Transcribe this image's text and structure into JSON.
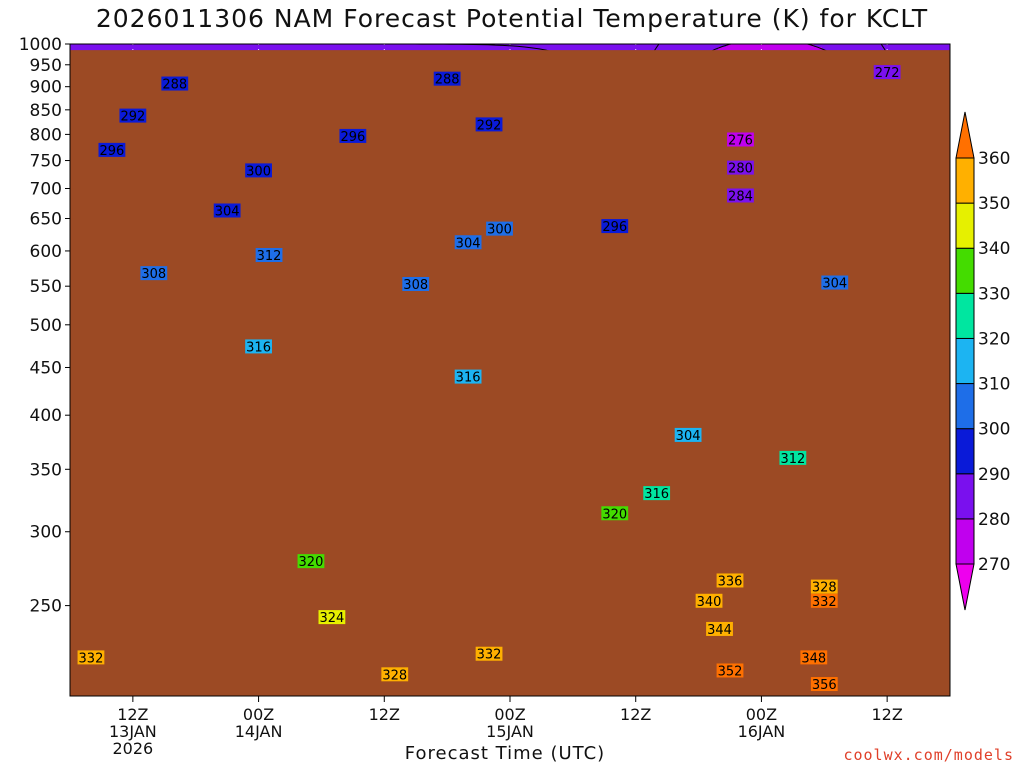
{
  "chart_data": {
    "type": "contour",
    "title": "2026011306 NAM Forecast Potential Temperature (K) for KCLT",
    "xlabel": "Forecast Time (UTC)",
    "ylabel": "",
    "credit": "coolwx.com/models",
    "x_ticks": [
      {
        "t": 6,
        "lines": [
          "12Z",
          "13JAN",
          "2026"
        ]
      },
      {
        "t": 18,
        "lines": [
          "00Z",
          "14JAN"
        ]
      },
      {
        "t": 30,
        "lines": [
          "12Z"
        ]
      },
      {
        "t": 42,
        "lines": [
          "00Z",
          "15JAN"
        ]
      },
      {
        "t": 54,
        "lines": [
          "12Z"
        ]
      },
      {
        "t": 66,
        "lines": [
          "00Z",
          "16JAN"
        ]
      },
      {
        "t": 78,
        "lines": [
          "12Z"
        ]
      }
    ],
    "xlim": [
      0,
      84
    ],
    "y_scale": "log",
    "ylim": [
      1000,
      200
    ],
    "y_ticks": [
      250,
      300,
      350,
      400,
      450,
      500,
      550,
      600,
      650,
      700,
      750,
      800,
      850,
      900,
      950,
      1000
    ],
    "grid": "dotted",
    "colorbar": {
      "ticks": [
        270,
        280,
        290,
        300,
        310,
        320,
        330,
        340,
        350,
        360
      ],
      "bands": [
        {
          "from": 260,
          "to": 270,
          "color": "#ee00ee"
        },
        {
          "from": 270,
          "to": 280,
          "color": "#c000ee"
        },
        {
          "from": 280,
          "to": 290,
          "color": "#7a10ee"
        },
        {
          "from": 290,
          "to": 300,
          "color": "#0a1ad8"
        },
        {
          "from": 300,
          "to": 310,
          "color": "#1e6ee8"
        },
        {
          "from": 310,
          "to": 320,
          "color": "#1cb4f2"
        },
        {
          "from": 320,
          "to": 330,
          "color": "#00e6a0"
        },
        {
          "from": 330,
          "to": 340,
          "color": "#44dc00"
        },
        {
          "from": 340,
          "to": 350,
          "color": "#e6f000"
        },
        {
          "from": 350,
          "to": 360,
          "color": "#ffb000"
        },
        {
          "from": 360,
          "to": 370,
          "color": "#ff7000"
        }
      ]
    },
    "contour_labels": [
      {
        "v": 332,
        "t": 2,
        "p": 220
      },
      {
        "v": 328,
        "t": 31,
        "p": 211
      },
      {
        "v": 332,
        "t": 40,
        "p": 222
      },
      {
        "v": 324,
        "t": 25,
        "p": 243
      },
      {
        "v": 320,
        "t": 23,
        "p": 279
      },
      {
        "v": 352,
        "t": 63,
        "p": 213
      },
      {
        "v": 356,
        "t": 72,
        "p": 206
      },
      {
        "v": 348,
        "t": 71,
        "p": 220
      },
      {
        "v": 344,
        "t": 62,
        "p": 236
      },
      {
        "v": 340,
        "t": 61,
        "p": 253
      },
      {
        "v": 336,
        "t": 63,
        "p": 266
      },
      {
        "v": 332,
        "t": 72,
        "p": 253
      },
      {
        "v": 328,
        "t": 72,
        "p": 262
      },
      {
        "v": 320,
        "t": 52,
        "p": 314
      },
      {
        "v": 316,
        "t": 56,
        "p": 330
      },
      {
        "v": 312,
        "t": 69,
        "p": 360
      },
      {
        "v": 304,
        "t": 59,
        "p": 381
      },
      {
        "v": 316,
        "t": 38,
        "p": 440
      },
      {
        "v": 316,
        "t": 18,
        "p": 474
      },
      {
        "v": 304,
        "t": 73,
        "p": 555
      },
      {
        "v": 308,
        "t": 33,
        "p": 553
      },
      {
        "v": 308,
        "t": 8,
        "p": 568
      },
      {
        "v": 312,
        "t": 19,
        "p": 594
      },
      {
        "v": 304,
        "t": 38,
        "p": 613
      },
      {
        "v": 300,
        "t": 41,
        "p": 634
      },
      {
        "v": 296,
        "t": 52,
        "p": 638
      },
      {
        "v": 304,
        "t": 15,
        "p": 663
      },
      {
        "v": 284,
        "t": 64,
        "p": 688
      },
      {
        "v": 300,
        "t": 18,
        "p": 732
      },
      {
        "v": 280,
        "t": 64,
        "p": 737
      },
      {
        "v": 296,
        "t": 4,
        "p": 770
      },
      {
        "v": 276,
        "t": 64,
        "p": 790
      },
      {
        "v": 296,
        "t": 27,
        "p": 797
      },
      {
        "v": 292,
        "t": 6,
        "p": 838
      },
      {
        "v": 292,
        "t": 40,
        "p": 820
      },
      {
        "v": 288,
        "t": 10,
        "p": 907
      },
      {
        "v": 288,
        "t": 36,
        "p": 918
      },
      {
        "v": 272,
        "t": 78,
        "p": 933
      }
    ]
  }
}
